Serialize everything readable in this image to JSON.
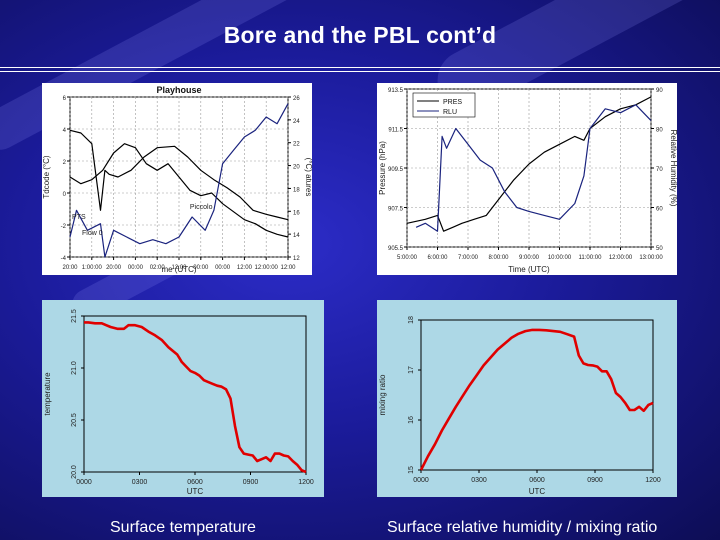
{
  "slide": {
    "title": "Bore and the PBL cont’d",
    "captions": {
      "left": "Surface temperature",
      "right": "Surface relative humidity / mixing ratio"
    },
    "colors": {
      "background": "#1b1b9a",
      "title": "#ffffff",
      "plot_bg": "#add8e6",
      "series_red": "#e00000"
    }
  },
  "chart_data": [
    {
      "type": "line",
      "title": "Playhouse",
      "xlabel": "me (UTC)",
      "ylabel": "Tdcode (°C)",
      "y2label": "(°C) atures",
      "x_ticks": [
        "20:00",
        "1:00:00",
        "20:00",
        "00:00",
        "02:00",
        "12:00",
        "00:00",
        "00:00",
        "12:00",
        "12:00:00",
        "12:00"
      ],
      "yleft_ticks": [
        "6",
        "4",
        "2",
        "0",
        "-2",
        "-4"
      ],
      "yright_ticks": [
        "26",
        "24",
        "22",
        "20",
        "18",
        "16",
        "14",
        "12"
      ],
      "annotations": [
        "Flow 0",
        "Piccolo",
        "PTS"
      ],
      "xlim": [
        0,
        10
      ],
      "ylim": [
        14,
        26
      ],
      "series": [
        {
          "color": "#000000",
          "x": [
            0,
            0.5,
            1,
            1.4,
            1.6,
            1.8,
            2.2,
            2.8,
            3.4,
            4.0,
            4.8,
            5.4,
            6.0,
            6.6,
            7.2,
            7.8,
            8.4,
            9.0,
            9.5,
            10
          ],
          "values": [
            23.5,
            23.3,
            22.5,
            17.5,
            20.5,
            20.2,
            20.0,
            20.5,
            21.5,
            22.2,
            22.3,
            21.5,
            20.5,
            19.8,
            19.2,
            18.5,
            17.5,
            17.2,
            17.0,
            16.8
          ]
        },
        {
          "color": "#000000",
          "x": [
            0,
            0.5,
            1.0,
            1.5,
            2.0,
            2.5,
            3.0,
            3.5,
            4.0,
            4.5,
            5.0,
            5.5,
            6.0,
            6.5,
            7.0,
            7.5,
            8.0,
            8.5,
            9.0,
            9.5,
            10
          ],
          "values": [
            20.0,
            19.5,
            19.8,
            20.5,
            21.8,
            22.5,
            22.2,
            21.0,
            20.5,
            21.0,
            20.0,
            19.0,
            18.6,
            18.8,
            18.0,
            17.4,
            16.8,
            16.5,
            16.0,
            15.7,
            15.5
          ]
        },
        {
          "color": "#1a237e",
          "x": [
            0,
            0.3,
            0.8,
            1.4,
            1.6,
            2.0,
            2.6,
            3.2,
            3.8,
            4.4,
            5.0,
            5.6,
            6.2,
            6.6,
            7.0,
            7.5,
            8.0,
            8.5,
            9.0,
            9.5,
            10
          ],
          "values": [
            15.5,
            17.5,
            16.0,
            16.5,
            14.0,
            16.0,
            15.5,
            15.0,
            15.3,
            15.0,
            15.5,
            17.0,
            16.0,
            17.5,
            21.0,
            22.0,
            23.0,
            23.5,
            24.5,
            24.0,
            25.5
          ]
        }
      ]
    },
    {
      "type": "line",
      "xlabel": "Time (UTC)",
      "ylabel": "Pressure (hPa)",
      "y2label": "Relative Humidity (%)",
      "x_ticks": [
        "5:00:00",
        "6:00:00",
        "7:00:00",
        "8:00:00",
        "9:00:00",
        "10:00:00",
        "11:00:00",
        "12:00:00",
        "13:00:00"
      ],
      "yleft_ticks": [
        "913.5",
        "911.5",
        "909.5",
        "907.5",
        "905.5"
      ],
      "yright_ticks": [
        "90",
        "80",
        "70",
        "60",
        "50"
      ],
      "legend": [
        "PRES",
        "RLU"
      ],
      "legend_position": "top-left",
      "xlim": [
        5,
        13
      ],
      "ylim": [
        50,
        90
      ],
      "series": [
        {
          "name": "PRES",
          "color": "#000000",
          "x": [
            5.0,
            5.6,
            6.0,
            6.2,
            6.5,
            6.8,
            7.2,
            7.6,
            8.0,
            8.5,
            9.0,
            9.5,
            10.0,
            10.5,
            10.8,
            11.0,
            11.5,
            12.0,
            12.5,
            13.0
          ],
          "values": [
            56,
            57,
            58,
            54,
            55,
            56,
            57,
            58,
            62,
            67,
            71,
            74,
            76,
            78,
            77,
            80,
            83,
            85,
            86,
            88
          ]
        },
        {
          "name": "RLU",
          "color": "#1a237e",
          "x": [
            5.3,
            5.6,
            6.0,
            6.15,
            6.3,
            6.6,
            7.0,
            7.4,
            7.8,
            8.2,
            8.6,
            9.0,
            9.5,
            10.0,
            10.5,
            10.8,
            11.0,
            11.5,
            12.0,
            12.5,
            13.0
          ],
          "values": [
            55,
            56,
            54,
            78,
            75,
            80,
            76,
            72,
            70,
            64,
            60,
            59,
            58,
            57,
            61,
            68,
            80,
            85,
            84,
            86,
            82
          ]
        }
      ]
    },
    {
      "type": "line",
      "xlabel": "UTC",
      "ylabel": "temperature",
      "x_ticks": [
        "0000",
        "0300",
        "0600",
        "0900",
        "1200"
      ],
      "y_ticks": [
        "20.0",
        "20.5",
        "21.0",
        "21.5"
      ],
      "ylim": [
        20.0,
        21.7
      ],
      "series": [
        {
          "color": "#e00000",
          "x": [
            0,
            0.2,
            0.5,
            0.8,
            1.0,
            1.2,
            1.5,
            1.8,
            2.0,
            2.3,
            2.6,
            2.9,
            3.2,
            3.5,
            3.8,
            4.0,
            4.2,
            4.3,
            4.4,
            4.6,
            4.8,
            5.0,
            5.2,
            5.4,
            5.6,
            5.8,
            6.0,
            6.2,
            6.4,
            6.6,
            6.8,
            7.0,
            7.2,
            7.4,
            7.6,
            7.8,
            8.0,
            8.2,
            8.4,
            8.6,
            8.8,
            9.0,
            9.2,
            9.4,
            9.6,
            9.8,
            10.0
          ],
          "values": [
            21.63,
            21.63,
            21.62,
            21.62,
            21.6,
            21.58,
            21.56,
            21.56,
            21.6,
            21.6,
            21.58,
            21.53,
            21.49,
            21.44,
            21.36,
            21.32,
            21.28,
            21.24,
            21.2,
            21.15,
            21.1,
            21.08,
            21.05,
            21.0,
            20.98,
            20.96,
            20.94,
            20.93,
            20.9,
            20.8,
            20.5,
            20.27,
            20.2,
            20.19,
            20.18,
            20.12,
            20.14,
            20.16,
            20.12,
            20.2,
            20.2,
            20.18,
            20.17,
            20.12,
            20.08,
            20.02,
            20.0
          ]
        }
      ]
    },
    {
      "type": "line",
      "xlabel": "UTC",
      "ylabel": "mixing ratio",
      "x_ticks": [
        "0000",
        "0300",
        "0600",
        "0900",
        "1200"
      ],
      "y_ticks": [
        "15",
        "16",
        "17",
        "18"
      ],
      "ylim": [
        14.6,
        18.4
      ],
      "series": [
        {
          "color": "#e00000",
          "x": [
            0,
            0.3,
            0.6,
            0.9,
            1.2,
            1.5,
            1.8,
            2.1,
            2.4,
            2.7,
            3.0,
            3.3,
            3.6,
            3.9,
            4.2,
            4.5,
            4.8,
            5.1,
            5.4,
            5.7,
            6.0,
            6.3,
            6.6,
            6.8,
            7.0,
            7.2,
            7.4,
            7.6,
            7.8,
            8.0,
            8.2,
            8.4,
            8.6,
            8.8,
            9.0,
            9.2,
            9.4,
            9.6,
            9.8,
            10.0
          ],
          "values": [
            14.6,
            14.95,
            15.25,
            15.6,
            15.9,
            16.2,
            16.48,
            16.75,
            17.0,
            17.25,
            17.45,
            17.65,
            17.8,
            17.95,
            18.05,
            18.12,
            18.15,
            18.15,
            18.14,
            18.12,
            18.1,
            18.04,
            17.98,
            17.5,
            17.3,
            17.26,
            17.25,
            17.22,
            17.1,
            17.1,
            16.9,
            16.55,
            16.45,
            16.3,
            16.12,
            16.12,
            16.2,
            16.1,
            16.25,
            16.3
          ]
        }
      ]
    }
  ]
}
